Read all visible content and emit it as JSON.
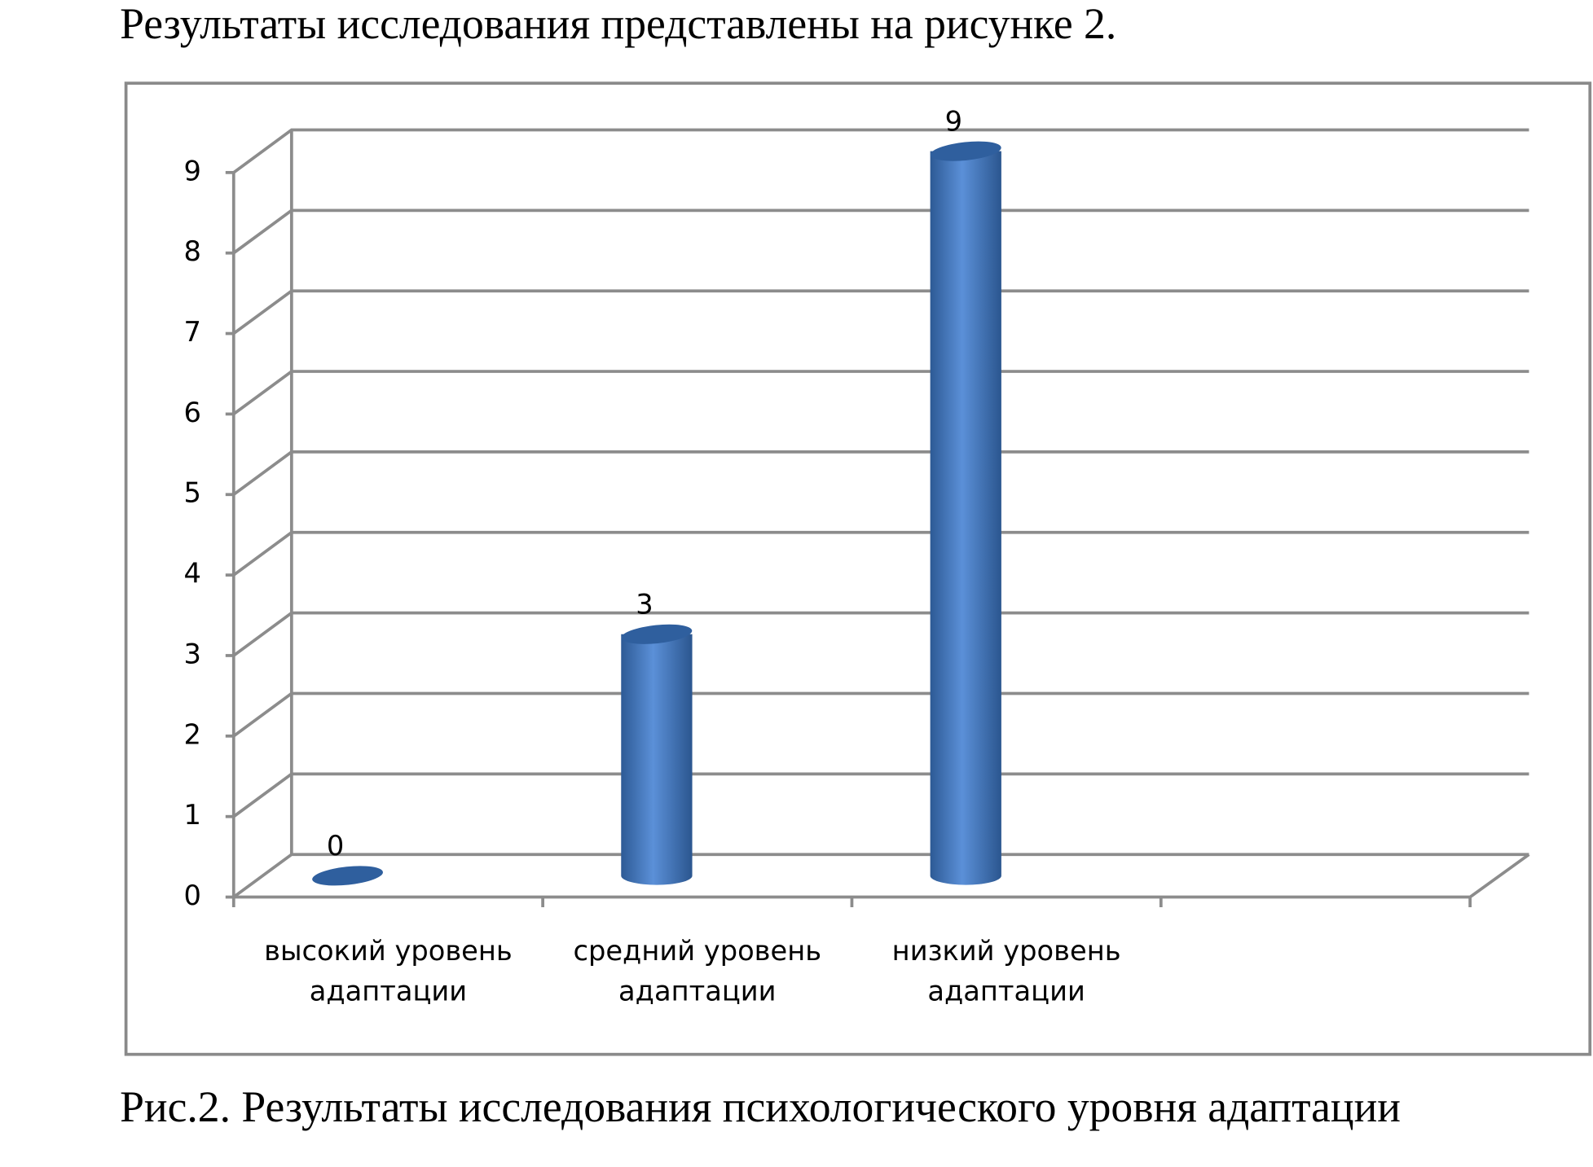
{
  "intro": "Результаты исследования представлены на рисунке 2.",
  "chart_data": {
    "type": "bar3d",
    "title": "Рис.2. Результаты исследования психологического уровня адаптации",
    "categories": [
      "высокий уровень адаптации",
      "средний уровень адаптации",
      "низкий уровень адаптации",
      null
    ],
    "values": [
      0,
      3,
      9,
      null
    ],
    "color": "#4a7cc4",
    "ylim": [
      0,
      9
    ],
    "yticks": [
      0,
      1,
      2,
      3,
      4,
      5,
      6,
      7,
      8,
      9
    ],
    "grid": true
  }
}
